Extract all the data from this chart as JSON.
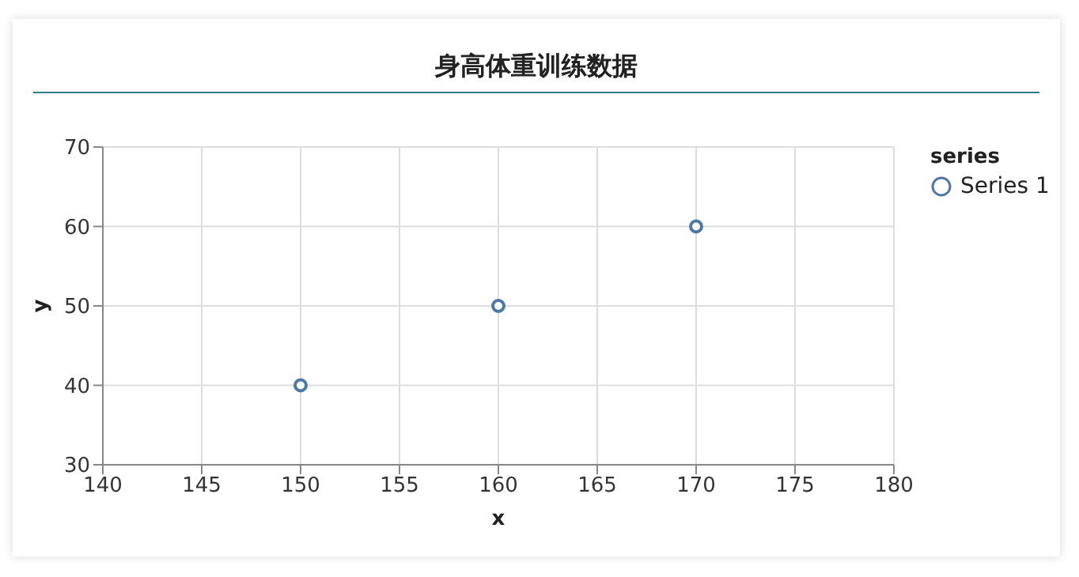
{
  "chart_data": {
    "type": "scatter",
    "title": "身高体重训练数据",
    "xlabel": "x",
    "ylabel": "y",
    "legend_title": "series",
    "x": [
      150,
      160,
      170
    ],
    "series": [
      {
        "name": "Series 1",
        "color": "#4c78a8",
        "values": [
          40,
          50,
          60
        ]
      }
    ],
    "xlim": [
      140,
      180
    ],
    "xticks": [
      140,
      145,
      150,
      155,
      160,
      165,
      170,
      175,
      180
    ],
    "ylim": [
      30,
      70
    ],
    "yticks": [
      30,
      40,
      50,
      60,
      70
    ],
    "grid": true,
    "legend": "right",
    "marker": "circle"
  }
}
